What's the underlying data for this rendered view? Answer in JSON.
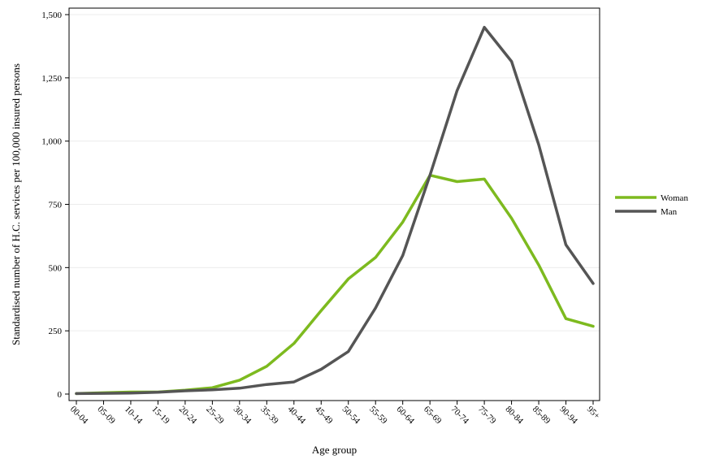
{
  "chart_data": {
    "type": "line",
    "title": "",
    "xlabel": "Age group",
    "ylabel": "Standardised number of H.C. services per 100,000 insured persons",
    "categories": [
      "00-04",
      "05-09",
      "10-14",
      "15-19",
      "20-24",
      "25-29",
      "30-34",
      "35-39",
      "40-44",
      "45-49",
      "50-54",
      "55-59",
      "60-64",
      "65-69",
      "70-74",
      "75-79",
      "80-84",
      "85-89",
      "90-94",
      "95+"
    ],
    "ylim": [
      0,
      1500
    ],
    "yticks": [
      0,
      250,
      500,
      750,
      1000,
      1250,
      1500
    ],
    "ytick_labels": [
      "0",
      "250",
      "500",
      "750",
      "1,000",
      "1,250",
      "1,500"
    ],
    "grid": true,
    "legend_position": "right",
    "series": [
      {
        "name": "Woman",
        "color": "#7dba1f",
        "values": [
          2,
          5,
          8,
          8,
          15,
          25,
          55,
          110,
          200,
          330,
          455,
          540,
          680,
          865,
          840,
          850,
          695,
          510,
          298,
          268
        ]
      },
      {
        "name": "Man",
        "color": "#555555",
        "values": [
          2,
          3,
          4,
          7,
          13,
          17,
          23,
          38,
          48,
          98,
          168,
          340,
          548,
          865,
          1200,
          1450,
          1315,
          985,
          590,
          437
        ]
      }
    ]
  }
}
